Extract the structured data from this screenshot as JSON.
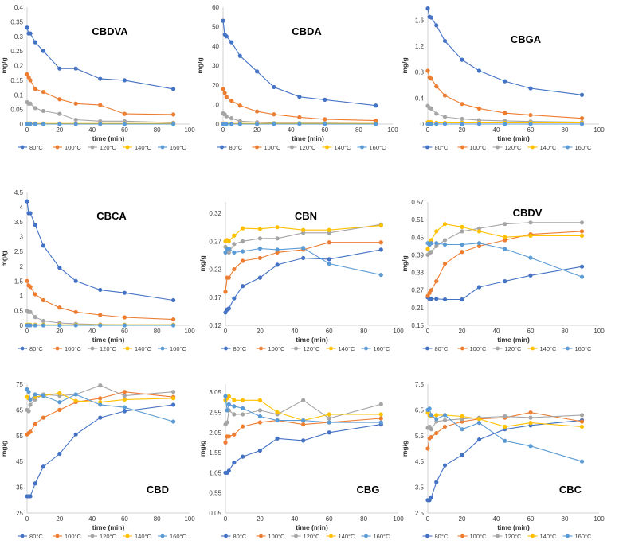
{
  "chart_data": [
    {
      "type": "line",
      "title": "CBDVA",
      "xlabel": "time (min)",
      "ylabel": "mg/g",
      "xlim": [
        0,
        100
      ],
      "ylim": [
        0,
        0.4
      ],
      "xticks": [
        "0",
        "20",
        "40",
        "60",
        "80",
        "100"
      ],
      "yticks": [
        "0",
        "0.05",
        "0.1",
        "0.15",
        "0.2",
        "0.25",
        "0.3",
        "0.35",
        "0.4"
      ],
      "x": [
        0,
        1,
        2,
        5,
        10,
        20,
        30,
        45,
        60,
        90
      ],
      "series": [
        {
          "name": "80°C",
          "color": "#4472C4",
          "values": [
            0.33,
            0.31,
            0.31,
            0.28,
            0.25,
            0.19,
            0.19,
            0.155,
            0.15,
            0.12
          ]
        },
        {
          "name": "100°C",
          "color": "#ED7D31",
          "values": [
            0.17,
            0.16,
            0.15,
            0.12,
            0.11,
            0.085,
            0.07,
            0.065,
            0.035,
            0.033
          ]
        },
        {
          "name": "120°C",
          "color": "#A5A5A5",
          "values": [
            0.075,
            0.07,
            0.07,
            0.055,
            0.045,
            0.035,
            0.015,
            0.01,
            0.01,
            0.005
          ]
        },
        {
          "name": "140°C",
          "color": "#FFC000",
          "values": [
            0.002,
            0.002,
            0.002,
            0.002,
            0.002,
            0.002,
            0.002,
            0.002,
            0.002,
            0.002
          ]
        },
        {
          "name": "160°C",
          "color": "#5B9BD5",
          "values": [
            0,
            0,
            0,
            0,
            0,
            0,
            0,
            0,
            0,
            0
          ]
        }
      ]
    },
    {
      "type": "line",
      "title": "CBDA",
      "xlabel": "time (min)",
      "ylabel": "mg/g",
      "xlim": [
        0,
        100
      ],
      "ylim": [
        0,
        60
      ],
      "xticks": [
        "0",
        "20",
        "40",
        "60",
        "80",
        "100"
      ],
      "yticks": [
        "0",
        "10",
        "20",
        "30",
        "40",
        "50",
        "60"
      ],
      "x": [
        0,
        1,
        2,
        5,
        10,
        20,
        30,
        45,
        60,
        90
      ],
      "series": [
        {
          "name": "80°C",
          "color": "#4472C4",
          "values": [
            53,
            46,
            45,
            42,
            35,
            27,
            19,
            14,
            12.5,
            9.5
          ]
        },
        {
          "name": "100°C",
          "color": "#ED7D31",
          "values": [
            18,
            16,
            14,
            12,
            9.5,
            6.5,
            5,
            3.5,
            2.5,
            1.8
          ]
        },
        {
          "name": "120°C",
          "color": "#A5A5A5",
          "values": [
            5.5,
            5,
            4,
            3,
            1.5,
            1,
            0.5,
            0.5,
            0.5,
            0.3
          ]
        },
        {
          "name": "140°C",
          "color": "#FFC000",
          "values": [
            0.3,
            0.3,
            0.3,
            0.3,
            0.3,
            0.3,
            0.3,
            0.3,
            0.3,
            0.3
          ]
        },
        {
          "name": "160°C",
          "color": "#5B9BD5",
          "values": [
            0,
            0,
            0,
            0,
            0,
            0,
            0,
            0,
            0,
            0
          ]
        }
      ]
    },
    {
      "type": "line",
      "title": "CBGA",
      "xlabel": "time (min)",
      "ylabel": "mg/g",
      "xlim": [
        0,
        100
      ],
      "ylim": [
        0,
        1.8
      ],
      "xticks": [
        "0",
        "20",
        "40",
        "60",
        "80",
        "100"
      ],
      "yticks": [
        "0",
        "0.4",
        "0.8",
        "1.2",
        "1.6"
      ],
      "x": [
        0,
        1,
        2,
        5,
        10,
        20,
        30,
        45,
        60,
        90
      ],
      "series": [
        {
          "name": "80°C",
          "color": "#4472C4",
          "values": [
            1.78,
            1.65,
            1.64,
            1.52,
            1.28,
            0.99,
            0.82,
            0.66,
            0.55,
            0.45
          ]
        },
        {
          "name": "100°C",
          "color": "#ED7D31",
          "values": [
            0.82,
            0.72,
            0.7,
            0.58,
            0.44,
            0.31,
            0.24,
            0.17,
            0.14,
            0.09
          ]
        },
        {
          "name": "120°C",
          "color": "#A5A5A5",
          "values": [
            0.28,
            0.25,
            0.24,
            0.16,
            0.11,
            0.08,
            0.06,
            0.05,
            0.04,
            0.03
          ]
        },
        {
          "name": "140°C",
          "color": "#FFC000",
          "values": [
            0.03,
            0.03,
            0.03,
            0.02,
            0.02,
            0.02,
            0.02,
            0.02,
            0.02,
            0.02
          ]
        },
        {
          "name": "160°C",
          "color": "#5B9BD5",
          "values": [
            0,
            0,
            0,
            0,
            0,
            0,
            0,
            0,
            0,
            0
          ]
        }
      ]
    },
    {
      "type": "line",
      "title": "CBCA",
      "xlabel": "time (min)",
      "ylabel": "mg/g",
      "xlim": [
        0,
        100
      ],
      "ylim": [
        0,
        4.5
      ],
      "xticks": [
        "0",
        "20",
        "40",
        "60",
        "80",
        "100"
      ],
      "yticks": [
        "0",
        "0.5",
        "1",
        "1.5",
        "2",
        "2.5",
        "3",
        "3.5",
        "4",
        "4.5"
      ],
      "x": [
        0,
        1,
        2,
        5,
        10,
        20,
        30,
        45,
        60,
        90
      ],
      "series": [
        {
          "name": "80°C",
          "color": "#4472C4",
          "values": [
            4.2,
            3.8,
            3.8,
            3.4,
            2.7,
            1.95,
            1.5,
            1.2,
            1.1,
            0.85
          ]
        },
        {
          "name": "100°C",
          "color": "#ED7D31",
          "values": [
            1.5,
            1.35,
            1.3,
            1.05,
            0.85,
            0.6,
            0.45,
            0.35,
            0.27,
            0.2
          ]
        },
        {
          "name": "120°C",
          "color": "#A5A5A5",
          "values": [
            0.5,
            0.45,
            0.45,
            0.28,
            0.15,
            0.08,
            0.05,
            0.03,
            0.02,
            0.02
          ]
        },
        {
          "name": "140°C",
          "color": "#FFC000",
          "values": [
            0.02,
            0.02,
            0.02,
            0.02,
            0.02,
            0.02,
            0.02,
            0.02,
            0.02,
            0.02
          ]
        },
        {
          "name": "160°C",
          "color": "#5B9BD5",
          "values": [
            0,
            0,
            0,
            0,
            0,
            0,
            0,
            0,
            0,
            0
          ]
        }
      ]
    },
    {
      "type": "line",
      "title": "CBN",
      "xlabel": "time (min)",
      "ylabel": "mg/g",
      "xlim": [
        0,
        100
      ],
      "ylim": [
        0.12,
        0.34
      ],
      "xticks": [
        "0",
        "20",
        "40",
        "60",
        "80",
        "100"
      ],
      "yticks": [
        "0.12",
        "0.17",
        "0.22",
        "0.27",
        "0.32"
      ],
      "x": [
        0,
        1,
        2,
        5,
        10,
        20,
        30,
        45,
        60,
        90
      ],
      "series": [
        {
          "name": "80°C",
          "color": "#4472C4",
          "values": [
            0.143,
            0.148,
            0.15,
            0.168,
            0.19,
            0.205,
            0.228,
            0.24,
            0.238,
            0.255
          ]
        },
        {
          "name": "100°C",
          "color": "#ED7D31",
          "values": [
            0.18,
            0.205,
            0.205,
            0.22,
            0.235,
            0.24,
            0.25,
            0.255,
            0.268,
            0.268
          ]
        },
        {
          "name": "120°C",
          "color": "#A5A5A5",
          "values": [
            0.26,
            0.255,
            0.25,
            0.265,
            0.27,
            0.275,
            0.275,
            0.285,
            0.285,
            0.3
          ]
        },
        {
          "name": "140°C",
          "color": "#FFC000",
          "values": [
            0.27,
            0.272,
            0.27,
            0.28,
            0.293,
            0.292,
            0.295,
            0.29,
            0.29,
            0.298
          ]
        },
        {
          "name": "160°C",
          "color": "#5B9BD5",
          "values": [
            0.25,
            0.256,
            0.257,
            0.25,
            0.252,
            0.257,
            0.255,
            0.258,
            0.23,
            0.21
          ]
        }
      ]
    },
    {
      "type": "line",
      "title": "CBDV",
      "xlabel": "time (min)",
      "ylabel": "mg/g",
      "xlim": [
        0,
        100
      ],
      "ylim": [
        0.15,
        0.57
      ],
      "xticks": [
        "0",
        "20",
        "40",
        "60",
        "80",
        "100"
      ],
      "yticks": [
        "0.15",
        "0.21",
        "0.27",
        "0.33",
        "0.39",
        "0.45",
        "0.51",
        "0.57"
      ],
      "x": [
        0,
        1,
        2,
        5,
        10,
        20,
        30,
        45,
        60,
        90
      ],
      "series": [
        {
          "name": "80°C",
          "color": "#4472C4",
          "values": [
            0.245,
            0.24,
            0.24,
            0.24,
            0.238,
            0.238,
            0.28,
            0.3,
            0.32,
            0.35
          ]
        },
        {
          "name": "100°C",
          "color": "#ED7D31",
          "values": [
            0.25,
            0.26,
            0.27,
            0.3,
            0.36,
            0.4,
            0.42,
            0.44,
            0.46,
            0.47
          ]
        },
        {
          "name": "120°C",
          "color": "#A5A5A5",
          "values": [
            0.39,
            0.395,
            0.4,
            0.42,
            0.44,
            0.47,
            0.48,
            0.495,
            0.5,
            0.5
          ]
        },
        {
          "name": "140°C",
          "color": "#FFC000",
          "values": [
            0.41,
            0.43,
            0.44,
            0.47,
            0.495,
            0.485,
            0.47,
            0.45,
            0.455,
            0.455
          ]
        },
        {
          "name": "160°C",
          "color": "#5B9BD5",
          "values": [
            0.43,
            0.425,
            0.43,
            0.43,
            0.425,
            0.425,
            0.43,
            0.41,
            0.38,
            0.315
          ]
        }
      ]
    },
    {
      "type": "line",
      "title": "CBD",
      "xlabel": "time (min)",
      "ylabel": "mg/g",
      "xlim": [
        0,
        100
      ],
      "ylim": [
        25,
        75
      ],
      "xticks": [
        "0",
        "20",
        "40",
        "60",
        "80",
        "100"
      ],
      "yticks": [
        "25",
        "35",
        "45",
        "55",
        "65",
        "75"
      ],
      "x": [
        0,
        1,
        2,
        5,
        10,
        20,
        30,
        45,
        60,
        90
      ],
      "series": [
        {
          "name": "80°C",
          "color": "#4472C4",
          "values": [
            31.5,
            31.5,
            31.5,
            36.5,
            43,
            48,
            55.5,
            62,
            64.5,
            67
          ]
        },
        {
          "name": "100°C",
          "color": "#ED7D31",
          "values": [
            55.5,
            56,
            56.5,
            59.5,
            62,
            65,
            68,
            69.5,
            72,
            70
          ]
        },
        {
          "name": "120°C",
          "color": "#A5A5A5",
          "values": [
            65,
            64.5,
            67,
            69,
            71,
            70.5,
            71,
            74.5,
            70.5,
            72
          ]
        },
        {
          "name": "140°C",
          "color": "#FFC000",
          "values": [
            70,
            69.5,
            69,
            70,
            70.5,
            71.5,
            68.5,
            68,
            69,
            69.5
          ]
        },
        {
          "name": "160°C",
          "color": "#5B9BD5",
          "values": [
            73,
            72,
            69,
            71,
            70.5,
            68,
            71,
            67,
            66,
            60.5
          ]
        }
      ]
    },
    {
      "type": "line",
      "title": "CBG",
      "xlabel": "time (min)",
      "ylabel": "mg/g",
      "xlim": [
        0,
        100
      ],
      "ylim": [
        0.05,
        3.25
      ],
      "xticks": [
        "0",
        "20",
        "40",
        "60",
        "80",
        "100"
      ],
      "yticks": [
        "0.05",
        "0.55",
        "1.05",
        "1.55",
        "2.05",
        "2.55",
        "3.05"
      ],
      "x": [
        0,
        1,
        2,
        5,
        10,
        20,
        30,
        45,
        60,
        90
      ],
      "series": [
        {
          "name": "80°C",
          "color": "#4472C4",
          "values": [
            1.05,
            1.05,
            1.1,
            1.3,
            1.45,
            1.6,
            1.9,
            1.85,
            2.05,
            2.25
          ]
        },
        {
          "name": "100°C",
          "color": "#ED7D31",
          "values": [
            1.8,
            1.95,
            1.95,
            2.0,
            2.2,
            2.3,
            2.35,
            2.25,
            2.3,
            2.4
          ]
        },
        {
          "name": "120°C",
          "color": "#A5A5A5",
          "values": [
            2.25,
            2.3,
            2.6,
            2.5,
            2.5,
            2.6,
            2.5,
            2.85,
            2.4,
            2.75
          ]
        },
        {
          "name": "140°C",
          "color": "#FFC000",
          "values": [
            2.85,
            2.9,
            2.95,
            2.85,
            2.85,
            2.85,
            2.55,
            2.35,
            2.5,
            2.5
          ]
        },
        {
          "name": "160°C",
          "color": "#5B9BD5",
          "values": [
            2.95,
            2.6,
            2.75,
            2.7,
            2.65,
            2.45,
            2.35,
            2.35,
            2.3,
            2.3
          ]
        }
      ]
    },
    {
      "type": "line",
      "title": "CBC",
      "xlabel": "time (min)",
      "ylabel": "mg/g",
      "xlim": [
        0,
        100
      ],
      "ylim": [
        2.5,
        7.5
      ],
      "xticks": [
        "0",
        "20",
        "40",
        "60",
        "80",
        "100"
      ],
      "yticks": [
        "2.5",
        "3.5",
        "4.5",
        "5.5",
        "6.5",
        "7.5"
      ],
      "x": [
        0,
        1,
        2,
        5,
        10,
        20,
        30,
        45,
        60,
        90
      ],
      "series": [
        {
          "name": "80°C",
          "color": "#4472C4",
          "values": [
            3.0,
            3.0,
            3.1,
            3.7,
            4.35,
            4.75,
            5.35,
            5.75,
            5.9,
            6.1
          ]
        },
        {
          "name": "100°C",
          "color": "#ED7D31",
          "values": [
            5.0,
            5.4,
            5.45,
            5.6,
            5.85,
            6.05,
            6.15,
            6.2,
            6.4,
            6.05
          ]
        },
        {
          "name": "120°C",
          "color": "#A5A5A5",
          "values": [
            5.8,
            5.85,
            5.75,
            6.05,
            6.1,
            6.15,
            6.2,
            6.25,
            6.2,
            6.3
          ]
        },
        {
          "name": "140°C",
          "color": "#FFC000",
          "values": [
            6.4,
            6.3,
            6.25,
            6.3,
            6.3,
            6.25,
            6.15,
            5.85,
            6.0,
            5.85
          ]
        },
        {
          "name": "160°C",
          "color": "#5B9BD5",
          "values": [
            6.5,
            6.55,
            6.3,
            6.15,
            6.3,
            5.75,
            6.0,
            5.3,
            5.1,
            4.5
          ]
        }
      ]
    }
  ]
}
